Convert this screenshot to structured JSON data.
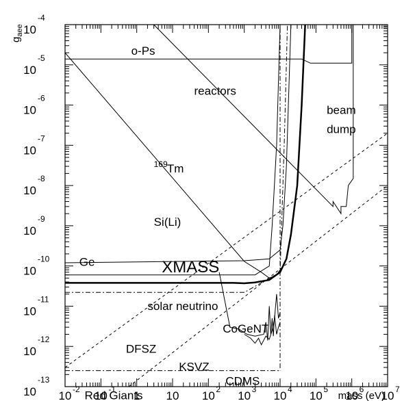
{
  "chart_data": {
    "type": "line",
    "x_scale": "log",
    "y_scale": "log",
    "xlim": [
      0.01,
      10000000
    ],
    "ylim": [
      1e-13,
      0.0001
    ],
    "ylabel": "g_aee",
    "ylabel_main": "g",
    "ylabel_sub": "aee",
    "xlabel": "mass (eV)",
    "grid": false,
    "x_ticks": [
      {
        "value": 0.01,
        "base": "10",
        "exp": "-2"
      },
      {
        "value": 0.1,
        "base": "10",
        "exp": "-1"
      },
      {
        "value": 1,
        "base": "1",
        "exp": ""
      },
      {
        "value": 10,
        "base": "10",
        "exp": ""
      },
      {
        "value": 100,
        "base": "10",
        "exp": "2"
      },
      {
        "value": 1000,
        "base": "10",
        "exp": "3"
      },
      {
        "value": 10000,
        "base": "10",
        "exp": "4"
      },
      {
        "value": 100000,
        "base": "10",
        "exp": "5"
      },
      {
        "value": 1000000,
        "base": "10",
        "exp": "6"
      },
      {
        "value": 10000000,
        "base": "10",
        "exp": "7"
      }
    ],
    "y_ticks": [
      {
        "value": 0.0001,
        "base": "10",
        "exp": "-4"
      },
      {
        "value": 1e-05,
        "base": "10",
        "exp": "-5"
      },
      {
        "value": 1e-06,
        "base": "10",
        "exp": "-6"
      },
      {
        "value": 1e-07,
        "base": "10",
        "exp": "-7"
      },
      {
        "value": 1e-08,
        "base": "10",
        "exp": "-8"
      },
      {
        "value": 1e-09,
        "base": "10",
        "exp": "-9"
      },
      {
        "value": 1e-10,
        "base": "10",
        "exp": "-10"
      },
      {
        "value": 1e-11,
        "base": "10",
        "exp": "-11"
      },
      {
        "value": 1e-12,
        "base": "10",
        "exp": "-12"
      },
      {
        "value": 1e-13,
        "base": "10",
        "exp": "-13"
      }
    ],
    "series": [
      {
        "key": "o-ps",
        "style": "solid",
        "width": 1,
        "points": [
          [
            0.01,
            1.4e-05
          ],
          [
            40000,
            1.4e-05
          ],
          [
            70000,
            1.1e-05
          ],
          [
            1000000,
            1.1e-05
          ],
          [
            1000000,
            0.0001
          ]
        ]
      },
      {
        "key": "reactors",
        "style": "solid",
        "width": 1,
        "points": [
          [
            3,
            0.0001
          ],
          [
            300000,
            3e-09
          ],
          [
            300000,
            4e-09
          ],
          [
            500000,
            2e-09
          ],
          [
            500000,
            3e-09
          ],
          [
            700000,
            3e-09
          ],
          [
            800000,
            1e-08
          ],
          [
            1100000,
            1.5e-08
          ],
          [
            1100000,
            0.0001
          ]
        ]
      },
      {
        "key": "tm169",
        "style": "solid",
        "width": 1,
        "points": [
          [
            0.01,
            2e-05
          ],
          [
            1000,
            1.3e-10
          ],
          [
            3000,
            7e-11
          ],
          [
            5000,
            5e-11
          ],
          [
            8000,
            6e-11
          ],
          [
            10000,
            8e-11
          ]
        ]
      },
      {
        "key": "si-li",
        "style": "solid",
        "width": 1,
        "points": [
          [
            0.01,
            1.2e-10
          ],
          [
            1000,
            1.35e-10
          ],
          [
            5000,
            1.5e-10
          ],
          [
            10000,
            2.5e-10
          ],
          [
            12000,
            1e-09
          ],
          [
            15000,
            3e-08
          ],
          [
            20000,
            0.0001
          ]
        ]
      },
      {
        "key": "ge",
        "style": "solid",
        "width": 1,
        "points": [
          [
            0.01,
            6e-11
          ],
          [
            500,
            6e-11
          ],
          [
            2000,
            6e-11
          ],
          [
            5000,
            1e-10
          ],
          [
            6000,
            1e-09
          ],
          [
            8000,
            1e-07
          ],
          [
            10000,
            0.0001
          ]
        ]
      },
      {
        "key": "xmass",
        "style": "solid",
        "width": 2.5,
        "points": [
          [
            0.01,
            3.8e-11
          ],
          [
            500,
            3.8e-11
          ],
          [
            1000,
            3.7e-11
          ],
          [
            2000,
            3.9e-11
          ],
          [
            5000,
            4.5e-11
          ],
          [
            10000,
            7e-11
          ],
          [
            15000,
            1.5e-10
          ],
          [
            20000,
            6e-10
          ],
          [
            30000,
            1e-08
          ],
          [
            40000,
            1e-06
          ],
          [
            50000,
            0.0001
          ]
        ]
      },
      {
        "key": "solar-neutrino",
        "style": "dashdot",
        "width": 1,
        "points": [
          [
            0.01,
            2.2e-11
          ],
          [
            1000,
            2.2e-11
          ],
          [
            10000,
            7e-11
          ],
          [
            13000,
            1e-07
          ],
          [
            16000,
            0.0001
          ]
        ]
      },
      {
        "key": "dashdot-vertical",
        "style": "dashdot",
        "width": 1,
        "points": [
          [
            10000,
            0.0001
          ],
          [
            10000,
            2.5e-13
          ]
        ]
      },
      {
        "key": "red-giants",
        "style": "dashdot",
        "width": 1,
        "points": [
          [
            0.01,
            2.5e-13
          ],
          [
            10000,
            2.5e-13
          ]
        ]
      },
      {
        "key": "dfsz",
        "style": "dashed",
        "width": 1,
        "points": [
          [
            0.01,
            3e-13
          ],
          [
            10000000,
            2e-07
          ]
        ]
      },
      {
        "key": "ksvz",
        "style": "dashed",
        "width": 1,
        "points": [
          [
            0.6,
            1e-13
          ],
          [
            10000000,
            1e-08
          ]
        ]
      },
      {
        "key": "cogent",
        "style": "solid",
        "width": 1,
        "points": [
          [
            200,
            7e-11
          ],
          [
            400,
            3e-12
          ],
          [
            700,
            2.7e-12
          ],
          [
            1200,
            2e-12
          ],
          [
            2000,
            1.8e-12
          ],
          [
            3500,
            2e-12
          ],
          [
            4000,
            4e-12
          ],
          [
            4500,
            1.4e-12
          ],
          [
            5000,
            1e-11
          ],
          [
            5500,
            2e-12
          ],
          [
            6000,
            5e-12
          ],
          [
            6500,
            1.8e-12
          ],
          [
            7000,
            6e-12
          ],
          [
            8000,
            2e-12
          ],
          [
            9000,
            3e-12
          ],
          [
            10000,
            4e-12
          ]
        ]
      },
      {
        "key": "cdms",
        "style": "solid",
        "width": 1,
        "points": [
          [
            1000,
            2e-12
          ],
          [
            1500,
            1.6e-12
          ],
          [
            2000,
            1.2e-12
          ],
          [
            2500,
            1.6e-12
          ],
          [
            3000,
            1.1e-12
          ],
          [
            4000,
            1.8e-12
          ],
          [
            5000,
            1.5e-12
          ],
          [
            6000,
            2.5e-12
          ],
          [
            7000,
            5e-12
          ],
          [
            8000,
            2e-11
          ],
          [
            9000,
            5e-12
          ],
          [
            10000,
            7e-12
          ]
        ]
      }
    ],
    "annotations": [
      {
        "key": "o-ps",
        "text": "o-Ps",
        "x": 0.7,
        "y": 1.8e-05,
        "size": "normal"
      },
      {
        "key": "reactors",
        "text": "reactors",
        "x": 40,
        "y": 1.8e-06,
        "size": "normal"
      },
      {
        "key": "beam",
        "text": "beam",
        "x": 200000,
        "y": 6e-07,
        "size": "normal"
      },
      {
        "key": "dump",
        "text": "dump",
        "x": 200000,
        "y": 2e-07,
        "size": "normal"
      },
      {
        "key": "tm",
        "text": "Tm",
        "x": 7,
        "y": 2.1e-08,
        "size": "normal",
        "sup": "169",
        "sup_x": 3
      },
      {
        "key": "si-li",
        "text": "Si(Li)",
        "x": 3,
        "y": 1e-09,
        "size": "normal"
      },
      {
        "key": "ge",
        "text": "Ge",
        "x": 0.025,
        "y": 1e-10,
        "size": "normal"
      },
      {
        "key": "xmass",
        "text": "XMASS",
        "x": 5,
        "y": 7e-11,
        "size": "big"
      },
      {
        "key": "solar-neutrino",
        "text": "solar neutrino",
        "x": 2,
        "y": 8e-12,
        "size": "normal"
      },
      {
        "key": "cogent",
        "text": "CoGeNT",
        "x": 250,
        "y": 2.2e-12,
        "size": "normal"
      },
      {
        "key": "dfsz",
        "text": "DFSZ",
        "x": 0.5,
        "y": 7e-13,
        "size": "normal"
      },
      {
        "key": "ksvz",
        "text": "KSVZ",
        "x": 15,
        "y": 2.5e-13,
        "size": "normal"
      },
      {
        "key": "cdms",
        "text": "CDMS",
        "x": 300,
        "y": 1.1e-13,
        "size": "normal"
      },
      {
        "key": "red-giants",
        "text": "Red Giants",
        "x": 0.035,
        "y": 4.8e-14,
        "size": "normal"
      }
    ]
  }
}
